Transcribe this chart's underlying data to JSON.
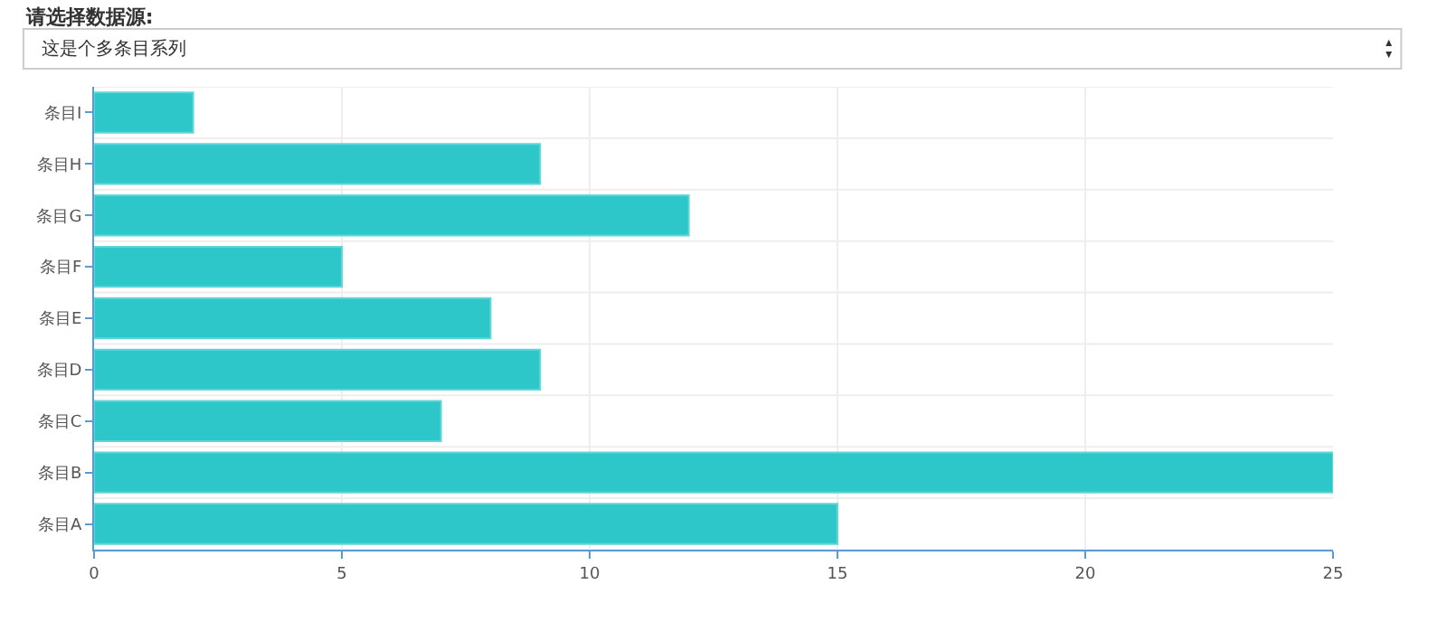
{
  "chart_data": {
    "type": "bar",
    "orientation": "horizontal",
    "title": "请选择数据源:",
    "annotations": [
      "这是个多条目系列"
    ],
    "categories": [
      "条目I",
      "条目H",
      "条目G",
      "条目F",
      "条目E",
      "条目D",
      "条目C",
      "条目B",
      "条目A"
    ],
    "values": [
      2,
      9,
      12,
      5,
      8,
      9,
      7,
      25,
      15
    ],
    "color": "#2ec7c9",
    "xlim": [
      0,
      25
    ],
    "xticks": [
      0,
      5,
      10,
      15,
      20,
      25
    ],
    "grid": true
  }
}
